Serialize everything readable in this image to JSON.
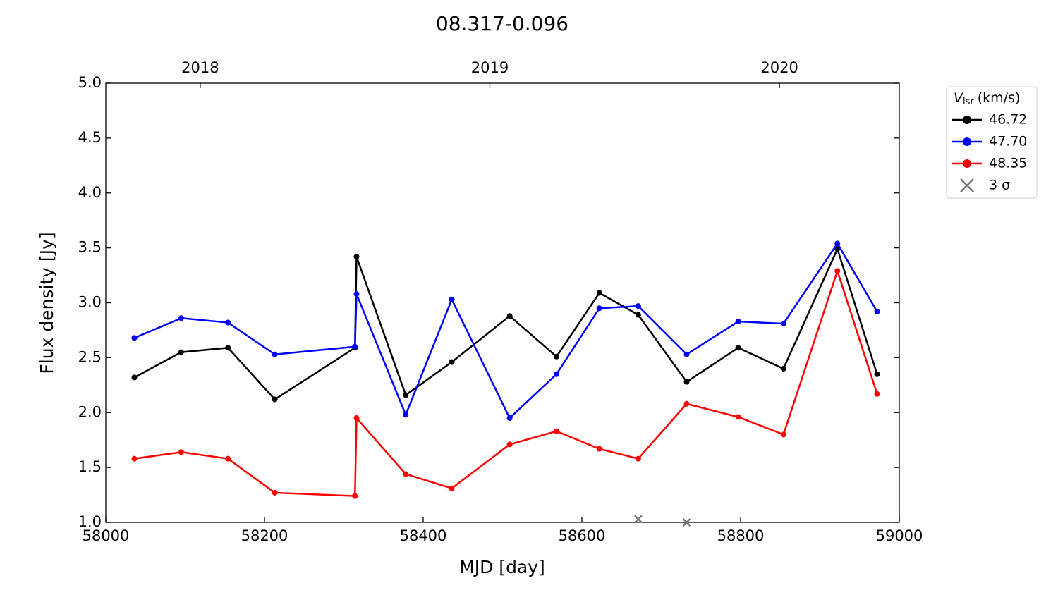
{
  "chart_data": {
    "type": "line",
    "title": "08.317-0.096",
    "xlabel": "MJD [day]",
    "ylabel": "Flux density [Jy]",
    "legend_title": {
      "symbol": "V",
      "subscript": "lsr",
      "unit": "(km/s)"
    },
    "legend": "upper right outside",
    "x": [
      58036,
      58095,
      58154,
      58213,
      58314,
      58316,
      58378,
      58436,
      58509,
      58568,
      58622,
      58671,
      58732,
      58797,
      58854,
      58922,
      58972
    ],
    "series": [
      {
        "name": "46.72",
        "color": "#000000",
        "values": [
          2.32,
          2.55,
          2.59,
          2.12,
          2.59,
          3.42,
          2.16,
          2.46,
          2.88,
          2.51,
          3.09,
          2.89,
          2.28,
          2.59,
          2.4,
          3.49,
          2.35
        ]
      },
      {
        "name": "47.70",
        "color": "#0000ff",
        "values": [
          2.68,
          2.86,
          2.82,
          2.53,
          2.6,
          3.08,
          1.98,
          3.03,
          1.95,
          2.35,
          2.95,
          2.97,
          2.53,
          2.83,
          2.81,
          3.54,
          2.92
        ]
      },
      {
        "name": "48.35",
        "color": "#ff0000",
        "values": [
          1.58,
          1.64,
          1.58,
          1.27,
          1.24,
          1.95,
          1.44,
          1.31,
          1.71,
          1.83,
          1.67,
          1.58,
          2.08,
          1.96,
          1.8,
          3.29,
          2.17
        ]
      },
      {
        "name": "3 σ",
        "color": "#777777",
        "marker": "x",
        "x": [
          58671,
          58732
        ],
        "values": [
          1.03,
          1.0
        ]
      }
    ],
    "xlim": [
      58000,
      59000
    ],
    "xticks": [
      58000,
      58200,
      58400,
      58600,
      58800,
      59000
    ],
    "x2ticks": [
      {
        "value": 58119,
        "label": "2018"
      },
      {
        "value": 58484,
        "label": "2019"
      },
      {
        "value": 58849,
        "label": "2020"
      }
    ],
    "ylim": [
      1.0,
      5.0
    ],
    "yticks": [
      {
        "value": 1.0,
        "label": "1.0"
      },
      {
        "value": 1.5,
        "label": "1.5"
      },
      {
        "value": 2.0,
        "label": "2.0"
      },
      {
        "value": 2.5,
        "label": "2.5"
      },
      {
        "value": 3.0,
        "label": "3.0"
      },
      {
        "value": 3.5,
        "label": "3.5"
      },
      {
        "value": 4.0,
        "label": "4.0"
      },
      {
        "value": 4.5,
        "label": "4.5"
      },
      {
        "value": 5.0,
        "label": "5.0"
      }
    ]
  }
}
